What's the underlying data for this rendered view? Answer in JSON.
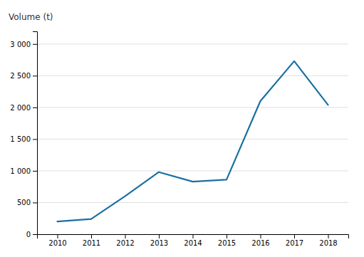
{
  "chart_data": {
    "type": "line",
    "y_label": "Volume (t)",
    "x": [
      2010,
      2011,
      2012,
      2013,
      2014,
      2015,
      2016,
      2017,
      2018
    ],
    "values": [
      200,
      240,
      600,
      980,
      830,
      860,
      2100,
      2730,
      2040
    ],
    "color": "#1a6fa3",
    "xlim": [
      2009.4,
      2018.6
    ],
    "xticks": [
      2010,
      2011,
      2012,
      2013,
      2014,
      2015,
      2016,
      2017,
      2018
    ],
    "ylim": [
      0,
      3200
    ],
    "yticks": [
      0,
      500,
      {
        "value": 1000,
        "label": "1 000"
      },
      {
        "value": 1500,
        "label": "1 500"
      },
      {
        "value": 2000,
        "label": "2 000"
      },
      {
        "value": 2500,
        "label": "2 500"
      },
      {
        "value": 3000,
        "label": "3 000"
      }
    ],
    "grid": true
  }
}
